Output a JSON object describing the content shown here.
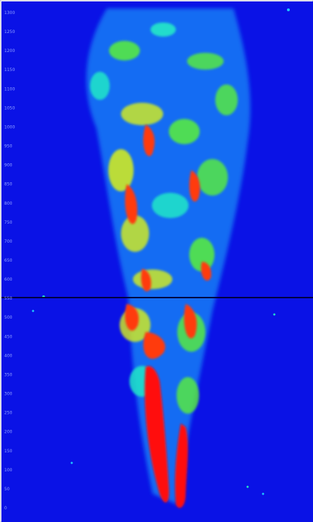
{
  "colors": {
    "background": "#0a12e6",
    "low": "#1fc8ff",
    "mid_low": "#22e8c8",
    "mid": "#5af03a",
    "mid_high": "#d8f018",
    "high": "#ff3a10",
    "peak": "#ff1010",
    "seam": "#000040",
    "tick_text": "#8fa0ff"
  },
  "axis": {
    "y_ticks": [
      "1300",
      "1250",
      "1200",
      "1150",
      "1100",
      "1050",
      "1000",
      "950",
      "900",
      "850",
      "800",
      "750",
      "700",
      "650",
      "600",
      "550",
      "500",
      "450",
      "400",
      "350",
      "300",
      "250",
      "200",
      "150",
      "100",
      "50",
      "0"
    ]
  },
  "image": {
    "subject": "false-color intensity map of a vertical spray plume",
    "seam_present": true
  }
}
